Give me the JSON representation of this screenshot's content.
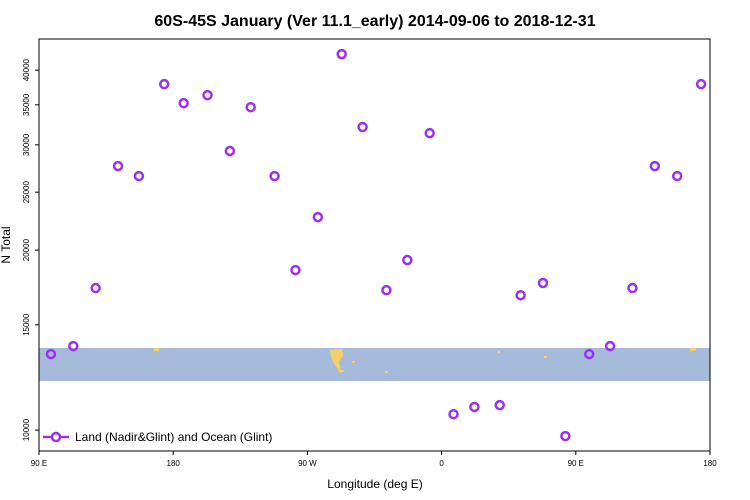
{
  "chart_data": {
    "type": "scatter",
    "title": "60S-45S January (Ver 11.1_early)   2014-09-06 to 2018-12-31",
    "x_label": "Longitude (deg E)",
    "y_label": "N Total",
    "log_scale": "y",
    "xlim": [
      90,
      540
    ],
    "ylim": [
      9225,
      45100
    ],
    "xticks": [
      {
        "value": 90,
        "label": "90 E"
      },
      180,
      {
        "value": 270,
        "label": "90 W"
      },
      {
        "value": 360,
        "label": "0"
      },
      {
        "value": 450,
        "label": "90 E"
      },
      {
        "value": 540,
        "label": "180"
      }
    ],
    "yticks": [
      10000,
      15000,
      20000,
      25000,
      30000,
      35000,
      40000
    ],
    "legend": "bottom-left",
    "series": [
      {
        "name": "Land (Nadir&Glint) and Ocean (Glint)",
        "color": "#9b30f0",
        "x": [
          98,
          113,
          128,
          143,
          157,
          174,
          187,
          203,
          218,
          232,
          248,
          262,
          277,
          293,
          307,
          323,
          337,
          352,
          368,
          382,
          399,
          413,
          428,
          443,
          459,
          473,
          488,
          503,
          518,
          534
        ],
        "values": [
          13400,
          13820,
          17280,
          27640,
          26600,
          37900,
          35230,
          36330,
          29300,
          34680,
          26600,
          18520,
          22710,
          42550,
          32130,
          17140,
          19250,
          31380,
          10630,
          10930,
          11010,
          16810,
          17620,
          9770,
          13400,
          13820,
          17280,
          27640,
          26600,
          37900
        ]
      }
    ]
  }
}
